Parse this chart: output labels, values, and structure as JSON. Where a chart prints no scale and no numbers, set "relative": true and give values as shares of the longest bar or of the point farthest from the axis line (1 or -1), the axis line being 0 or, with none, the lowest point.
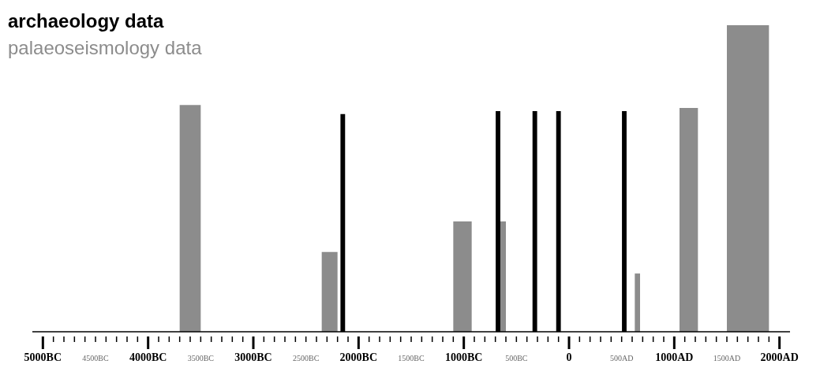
{
  "chart_data": {
    "type": "bar",
    "relative": true,
    "legend": "top left",
    "xlim": [
      -5100,
      2100
    ],
    "xticks": [
      {
        "value": -5000,
        "label": "5000BC"
      },
      {
        "value": -4900,
        "label": null
      },
      {
        "value": -4800,
        "label": null
      },
      {
        "value": -4700,
        "label": null
      },
      {
        "value": -4600,
        "label": null
      },
      {
        "value": -4500,
        "label": "4500BC"
      },
      {
        "value": -4400,
        "label": null
      },
      {
        "value": -4300,
        "label": null
      },
      {
        "value": -4200,
        "label": null
      },
      {
        "value": -4100,
        "label": null
      },
      {
        "value": -4000,
        "label": "4000BC"
      },
      {
        "value": -3900,
        "label": null
      },
      {
        "value": -3800,
        "label": null
      },
      {
        "value": -3700,
        "label": null
      },
      {
        "value": -3600,
        "label": null
      },
      {
        "value": -3500,
        "label": "3500BC"
      },
      {
        "value": -3400,
        "label": null
      },
      {
        "value": -3300,
        "label": null
      },
      {
        "value": -3200,
        "label": null
      },
      {
        "value": -3100,
        "label": null
      },
      {
        "value": -3000,
        "label": "3000BC"
      },
      {
        "value": -2900,
        "label": null
      },
      {
        "value": -2800,
        "label": null
      },
      {
        "value": -2700,
        "label": null
      },
      {
        "value": -2600,
        "label": null
      },
      {
        "value": -2500,
        "label": "2500BC"
      },
      {
        "value": -2400,
        "label": null
      },
      {
        "value": -2300,
        "label": null
      },
      {
        "value": -2200,
        "label": null
      },
      {
        "value": -2100,
        "label": null
      },
      {
        "value": -2000,
        "label": "2000BC"
      },
      {
        "value": -1900,
        "label": null
      },
      {
        "value": -1800,
        "label": null
      },
      {
        "value": -1700,
        "label": null
      },
      {
        "value": -1600,
        "label": null
      },
      {
        "value": -1500,
        "label": "1500BC"
      },
      {
        "value": -1400,
        "label": null
      },
      {
        "value": -1300,
        "label": null
      },
      {
        "value": -1200,
        "label": null
      },
      {
        "value": -1100,
        "label": null
      },
      {
        "value": -1000,
        "label": "1000BC"
      },
      {
        "value": -900,
        "label": null
      },
      {
        "value": -800,
        "label": null
      },
      {
        "value": -700,
        "label": null
      },
      {
        "value": -600,
        "label": null
      },
      {
        "value": -500,
        "label": "500BC"
      },
      {
        "value": -400,
        "label": null
      },
      {
        "value": -300,
        "label": null
      },
      {
        "value": -200,
        "label": null
      },
      {
        "value": -100,
        "label": null
      },
      0,
      {
        "value": 100,
        "label": null
      },
      {
        "value": 200,
        "label": null
      },
      {
        "value": 300,
        "label": null
      },
      {
        "value": 400,
        "label": null
      },
      {
        "value": 500,
        "label": "500AD"
      },
      {
        "value": 600,
        "label": null
      },
      {
        "value": 700,
        "label": null
      },
      {
        "value": 800,
        "label": null
      },
      {
        "value": 900,
        "label": null
      },
      {
        "value": 1000,
        "label": "1000AD"
      },
      {
        "value": 1100,
        "label": null
      },
      {
        "value": 1200,
        "label": null
      },
      {
        "value": 1300,
        "label": null
      },
      {
        "value": 1400,
        "label": null
      },
      {
        "value": 1500,
        "label": "1500AD"
      },
      {
        "value": 1600,
        "label": null
      },
      {
        "value": 1700,
        "label": null
      },
      {
        "value": 1800,
        "label": null
      },
      {
        "value": 1900,
        "label": null
      },
      {
        "value": 2000,
        "label": "2000AD"
      }
    ],
    "series": [
      {
        "name": "archaeology data",
        "color": "#000000",
        "x": [
          -2150,
          -675,
          -325,
          -100,
          525
        ],
        "values": [
          0.71,
          0.72,
          0.72,
          0.72,
          0.72
        ]
      },
      {
        "name": "palaeoseismology data",
        "color": "#8c8c8c",
        "type": "histogram",
        "bins": [
          -3700,
          -3500,
          -2350,
          -2200,
          -1100,
          -925,
          -675,
          -600,
          625,
          675,
          1050,
          1225,
          1500,
          1900
        ],
        "values": [
          0.74,
          null,
          0.26,
          null,
          0.36,
          null,
          0.36,
          null,
          0.19,
          null,
          0.73,
          null,
          1
        ]
      }
    ]
  }
}
